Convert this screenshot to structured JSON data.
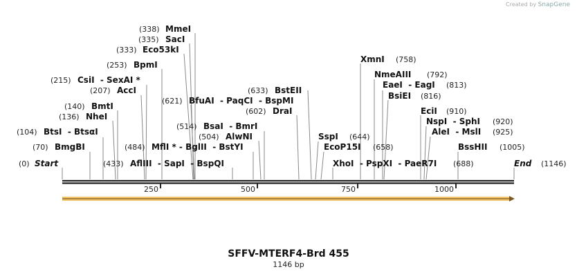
{
  "credit": {
    "prefix": "Created by",
    "brand": "SnapGene"
  },
  "title": "SFFV-MTERF4-Brd 455",
  "length": "1146 bp",
  "ticks": [
    "250",
    "500",
    "750",
    "1000"
  ],
  "colors": {
    "backbone": "#222222",
    "feature": "#f5c56b",
    "line": "#888888"
  },
  "sites": [
    {
      "pos": "(338)",
      "name": "MmeI"
    },
    {
      "pos": "(335)",
      "name": "SacI"
    },
    {
      "pos": "(333)",
      "name": "Eco53kI"
    },
    {
      "pos": "(253)",
      "name": "BpmI"
    },
    {
      "pos": "(215)",
      "name": "CsiI  - SexAI *"
    },
    {
      "pos": "(207)",
      "name": "AccI"
    },
    {
      "pos": "(140)",
      "name": "BmtI"
    },
    {
      "pos": "(136)",
      "name": "NheI"
    },
    {
      "pos": "(104)",
      "name": "BtsI  - BtsαI"
    },
    {
      "pos": "(70)",
      "name": "BmgBI"
    },
    {
      "pos": "(0)",
      "name": "Start"
    },
    {
      "pos": "(433)",
      "name": "AflIII  - SapI  - BspQI"
    },
    {
      "pos": "(484)",
      "name": "MflI * - BglII  - BstYI"
    },
    {
      "pos": "(504)",
      "name": "AlwNI"
    },
    {
      "pos": "(514)",
      "name": "BsaI  - BmrI"
    },
    {
      "pos": "(621)",
      "name": "BfuAI  - PaqCI  - BspMI"
    },
    {
      "pos": "(602)",
      "name": "DraI"
    },
    {
      "pos": "(633)",
      "name": "BstEII"
    },
    {
      "pos": "(644)",
      "name": "SspI"
    },
    {
      "pos": "(658)",
      "name": "EcoP15I"
    },
    {
      "pos": "(688)",
      "name": "XhoI  - PspXI  - PaeR7I"
    },
    {
      "pos": "(758)",
      "name": "XmnI"
    },
    {
      "pos": "(792)",
      "name": "NmeAIII"
    },
    {
      "pos": "(813)",
      "name": "EaeI  - EagI"
    },
    {
      "pos": "(816)",
      "name": "BsiEI"
    },
    {
      "pos": "(910)",
      "name": "EciI"
    },
    {
      "pos": "(920)",
      "name": "NspI  - SphI"
    },
    {
      "pos": "(925)",
      "name": "AleI  - MslI"
    },
    {
      "pos": "(1005)",
      "name": "BssHII"
    },
    {
      "pos": "(1146)",
      "name": "End"
    }
  ]
}
